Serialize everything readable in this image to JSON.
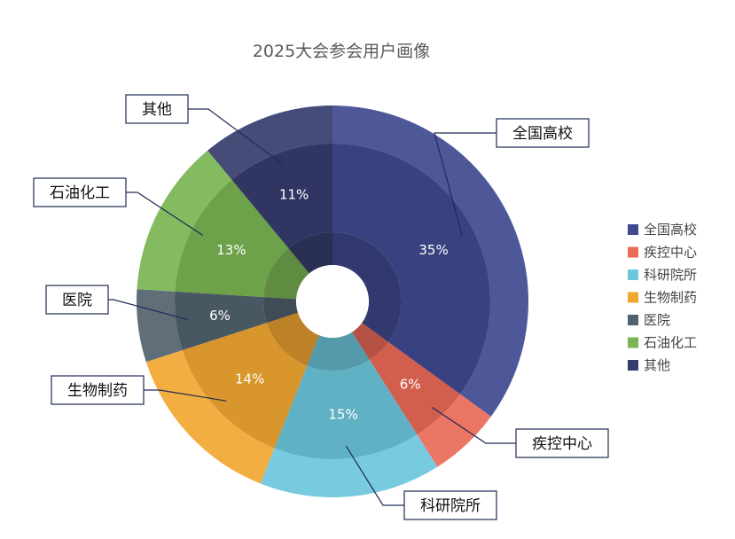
{
  "chart_data": {
    "type": "pie",
    "title": "2025大会参会用户画像",
    "categories": [
      "全国高校",
      "疾控中心",
      "科研院所",
      "生物制药",
      "医院",
      "石油化工",
      "其他"
    ],
    "values": [
      35,
      6,
      15,
      14,
      6,
      13,
      11
    ],
    "value_labels": [
      "35%",
      "6%",
      "15%",
      "14%",
      "6%",
      "13%",
      "11%"
    ],
    "colors": [
      "#3f4a8f",
      "#ea6a57",
      "#6cc6dc",
      "#f2a732",
      "#51626e",
      "#7ab453",
      "#363d6c"
    ],
    "legend": {
      "position": "right",
      "entries": [
        "全国高校",
        "疾控中心",
        "科研院所",
        "生物制药",
        "医院",
        "石油化工",
        "其他"
      ]
    },
    "callout_labels": [
      "全国高校",
      "疾控中心",
      "科研院所",
      "生物制药",
      "医院",
      "石油化工",
      "其他"
    ]
  }
}
